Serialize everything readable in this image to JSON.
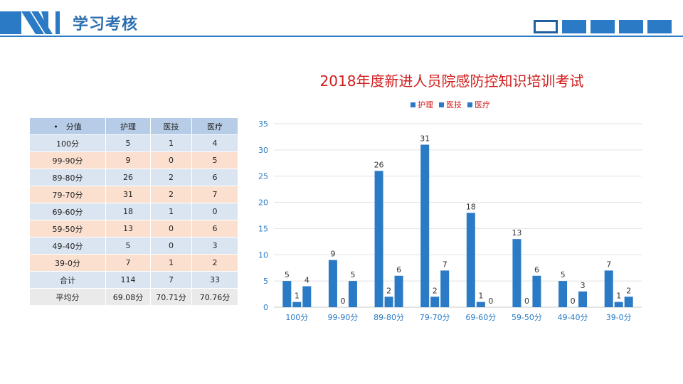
{
  "header": {
    "title": "学习考核"
  },
  "table": {
    "headers": [
      "•　分值",
      "护理",
      "医技",
      "医疗"
    ],
    "rows": [
      {
        "label": "100分",
        "cells": [
          "5",
          "1",
          "4"
        ]
      },
      {
        "label": "99-90分",
        "cells": [
          "9",
          "0",
          "5"
        ]
      },
      {
        "label": "89-80分",
        "cells": [
          "26",
          "2",
          "6"
        ]
      },
      {
        "label": "79-70分",
        "cells": [
          "31",
          "2",
          "7"
        ]
      },
      {
        "label": "69-60分",
        "cells": [
          "18",
          "1",
          "0"
        ]
      },
      {
        "label": "59-50分",
        "cells": [
          "13",
          "0",
          "6"
        ]
      },
      {
        "label": "49-40分",
        "cells": [
          "5",
          "0",
          "3"
        ]
      },
      {
        "label": "39-0分",
        "cells": [
          "7",
          "1",
          "2"
        ]
      },
      {
        "label": "合计",
        "cells": [
          "114",
          "7",
          "33"
        ]
      },
      {
        "label": "平均分",
        "cells": [
          "69.08分",
          "70.71分",
          "70.76分"
        ]
      }
    ]
  },
  "colors": {
    "accent": "#2a7ac5",
    "title_red": "#d11c1c",
    "header_blue": "#2e6fb0"
  },
  "chart_data": {
    "type": "bar",
    "title": "2018年度新进人员院感防控知识培训考试",
    "categories": [
      "100分",
      "99-90分",
      "89-80分",
      "79-70分",
      "69-60分",
      "59-50分",
      "49-40分",
      "39-0分"
    ],
    "series": [
      {
        "name": "护理",
        "values": [
          5,
          9,
          26,
          31,
          18,
          13,
          5,
          7
        ]
      },
      {
        "name": "医技",
        "values": [
          1,
          0,
          2,
          2,
          1,
          0,
          0,
          1
        ]
      },
      {
        "name": "医疗",
        "values": [
          4,
          5,
          6,
          7,
          0,
          6,
          3,
          2
        ]
      }
    ],
    "ylim": [
      0,
      35
    ],
    "yticks": [
      0,
      5,
      10,
      15,
      20,
      25,
      30,
      35
    ],
    "grid": true,
    "legend": "top-center",
    "data_labels": true
  }
}
